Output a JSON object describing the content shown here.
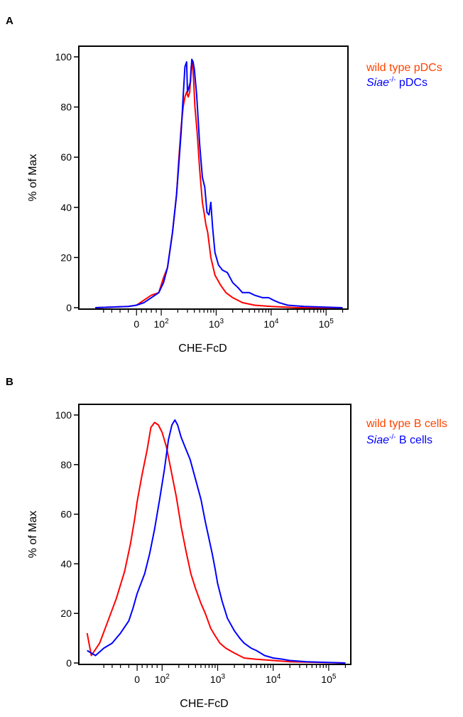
{
  "chart_data": [
    {
      "panel": "A",
      "type": "line",
      "xlabel": "CHE-FcD",
      "ylabel": "% of Max",
      "x_scale": "biexponential",
      "ylim": [
        0,
        100
      ],
      "y_ticks": [
        0,
        20,
        40,
        60,
        80,
        100
      ],
      "x_tick_labels": [
        {
          "value": 0,
          "label": "0"
        },
        {
          "value": 100,
          "label": "10",
          "exp": "2"
        },
        {
          "value": 1000,
          "label": "10",
          "exp": "3"
        },
        {
          "value": 10000,
          "label": "10",
          "exp": "4"
        },
        {
          "value": 100000,
          "label": "10",
          "exp": "5"
        }
      ],
      "series": [
        {
          "name": "wild type pDCs",
          "color": "#ff0000",
          "points": [
            [
              -500,
              0
            ],
            [
              -100,
              0.5
            ],
            [
              0,
              1
            ],
            [
              30,
              3
            ],
            [
              60,
              5
            ],
            [
              90,
              6
            ],
            [
              110,
              12
            ],
            [
              130,
              16
            ],
            [
              160,
              30
            ],
            [
              190,
              45
            ],
            [
              210,
              60
            ],
            [
              230,
              72
            ],
            [
              250,
              80
            ],
            [
              270,
              84
            ],
            [
              290,
              86
            ],
            [
              310,
              84
            ],
            [
              330,
              86
            ],
            [
              350,
              96
            ],
            [
              370,
              98
            ],
            [
              390,
              90
            ],
            [
              410,
              80
            ],
            [
              450,
              70
            ],
            [
              500,
              55
            ],
            [
              560,
              42
            ],
            [
              600,
              38
            ],
            [
              650,
              33
            ],
            [
              700,
              30
            ],
            [
              800,
              20
            ],
            [
              950,
              13
            ],
            [
              1200,
              9
            ],
            [
              1500,
              6
            ],
            [
              2000,
              4
            ],
            [
              3000,
              2
            ],
            [
              5000,
              1
            ],
            [
              10000,
              0.5
            ],
            [
              30000,
              0
            ],
            [
              200000,
              0
            ]
          ]
        },
        {
          "name": "Siae-/- pDCs",
          "color": "#0000ff",
          "points": [
            [
              -500,
              0
            ],
            [
              -100,
              0.5
            ],
            [
              0,
              1
            ],
            [
              30,
              2
            ],
            [
              60,
              4
            ],
            [
              90,
              6
            ],
            [
              110,
              10
            ],
            [
              130,
              16
            ],
            [
              160,
              30
            ],
            [
              190,
              45
            ],
            [
              210,
              58
            ],
            [
              230,
              70
            ],
            [
              250,
              84
            ],
            [
              270,
              96
            ],
            [
              290,
              98
            ],
            [
              300,
              86
            ],
            [
              320,
              88
            ],
            [
              340,
              90
            ],
            [
              360,
              99
            ],
            [
              380,
              98
            ],
            [
              400,
              95
            ],
            [
              440,
              85
            ],
            [
              500,
              65
            ],
            [
              560,
              52
            ],
            [
              620,
              48
            ],
            [
              680,
              38
            ],
            [
              740,
              37
            ],
            [
              800,
              42
            ],
            [
              860,
              32
            ],
            [
              950,
              22
            ],
            [
              1100,
              17
            ],
            [
              1300,
              15
            ],
            [
              1600,
              14
            ],
            [
              2000,
              10
            ],
            [
              2500,
              8
            ],
            [
              3000,
              6
            ],
            [
              4000,
              6
            ],
            [
              5000,
              5
            ],
            [
              7000,
              4
            ],
            [
              9000,
              4
            ],
            [
              11000,
              3
            ],
            [
              14000,
              2
            ],
            [
              20000,
              1
            ],
            [
              40000,
              0.5
            ],
            [
              200000,
              0
            ]
          ]
        }
      ]
    },
    {
      "panel": "B",
      "type": "line",
      "xlabel": "CHE-FcD",
      "ylabel": "% of Max",
      "x_scale": "biexponential",
      "ylim": [
        0,
        100
      ],
      "y_ticks": [
        0,
        20,
        40,
        60,
        80,
        100
      ],
      "x_tick_labels": [
        {
          "value": 0,
          "label": "0"
        },
        {
          "value": 100,
          "label": "10",
          "exp": "2"
        },
        {
          "value": 1000,
          "label": "10",
          "exp": "3"
        },
        {
          "value": 10000,
          "label": "10",
          "exp": "4"
        },
        {
          "value": 100000,
          "label": "10",
          "exp": "5"
        }
      ],
      "series": [
        {
          "name": "wild type B cells",
          "color": "#ff0000",
          "points": [
            [
              -600,
              12
            ],
            [
              -550,
              3
            ],
            [
              -450,
              8
            ],
            [
              -350,
              17
            ],
            [
              -250,
              26
            ],
            [
              -150,
              37
            ],
            [
              -80,
              48
            ],
            [
              -30,
              58
            ],
            [
              0,
              65
            ],
            [
              20,
              76
            ],
            [
              40,
              86
            ],
            [
              55,
              95
            ],
            [
              70,
              97
            ],
            [
              85,
              96
            ],
            [
              100,
              93
            ],
            [
              120,
              87
            ],
            [
              150,
              76
            ],
            [
              180,
              67
            ],
            [
              220,
              55
            ],
            [
              270,
              45
            ],
            [
              330,
              36
            ],
            [
              400,
              30
            ],
            [
              500,
              24
            ],
            [
              600,
              20
            ],
            [
              750,
              14
            ],
            [
              900,
              11
            ],
            [
              1100,
              8
            ],
            [
              1400,
              6
            ],
            [
              2000,
              4
            ],
            [
              3000,
              2
            ],
            [
              5000,
              1.5
            ],
            [
              10000,
              1
            ],
            [
              20000,
              0.5
            ],
            [
              200000,
              0
            ]
          ]
        },
        {
          "name": "Siae-/- B cells",
          "color": "#0000ff",
          "points": [
            [
              -600,
              5
            ],
            [
              -500,
              3
            ],
            [
              -400,
              6
            ],
            [
              -300,
              8
            ],
            [
              -200,
              12
            ],
            [
              -100,
              17
            ],
            [
              -50,
              22
            ],
            [
              0,
              28
            ],
            [
              30,
              36
            ],
            [
              50,
              44
            ],
            [
              70,
              54
            ],
            [
              90,
              66
            ],
            [
              110,
              78
            ],
            [
              130,
              90
            ],
            [
              150,
              96
            ],
            [
              170,
              98
            ],
            [
              190,
              96
            ],
            [
              220,
              91
            ],
            [
              260,
              87
            ],
            [
              320,
              82
            ],
            [
              400,
              74
            ],
            [
              500,
              66
            ],
            [
              600,
              57
            ],
            [
              700,
              50
            ],
            [
              800,
              44
            ],
            [
              900,
              38
            ],
            [
              1000,
              32
            ],
            [
              1200,
              25
            ],
            [
              1500,
              18
            ],
            [
              2000,
              13
            ],
            [
              2500,
              10
            ],
            [
              3000,
              8
            ],
            [
              4000,
              6
            ],
            [
              5000,
              5
            ],
            [
              7000,
              3
            ],
            [
              10000,
              2
            ],
            [
              15000,
              1.5
            ],
            [
              20000,
              1
            ],
            [
              40000,
              0.5
            ],
            [
              200000,
              0
            ]
          ]
        }
      ]
    }
  ],
  "panel_labels": [
    "A",
    "B"
  ],
  "legend_a": {
    "entry1": {
      "text": "wild type pDCs",
      "color": "#ff4400"
    },
    "entry2": {
      "italic": "Siae",
      "sup": "-/-",
      "rest": " pDCs",
      "color": "#0000ff"
    }
  },
  "legend_b": {
    "entry1": {
      "text": "wild type B cells",
      "color": "#ff4400"
    },
    "entry2": {
      "italic": "Siae",
      "sup": "-/-",
      "rest": " B cells",
      "color": "#0000ff"
    }
  }
}
